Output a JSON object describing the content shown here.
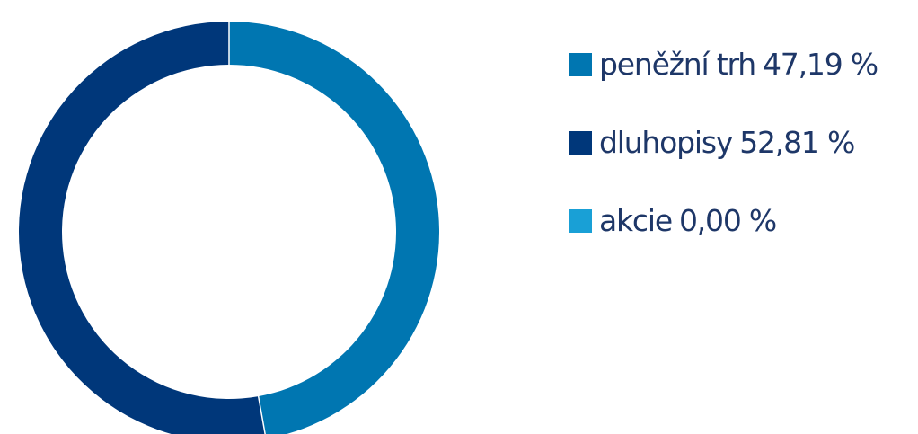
{
  "chart_data": {
    "type": "pie",
    "donut": true,
    "slices": [
      {
        "label": "peněžní trh",
        "value": 47.19,
        "value_text": "47,19 %",
        "color": "#0076b1"
      },
      {
        "label": "dluhopisy",
        "value": 52.81,
        "value_text": "52,81 %",
        "color": "#00377a"
      },
      {
        "label": "akcie",
        "value": 0.0,
        "value_text": "0,00 %",
        "color": "#19a0d6"
      }
    ],
    "legend_position": "right"
  }
}
